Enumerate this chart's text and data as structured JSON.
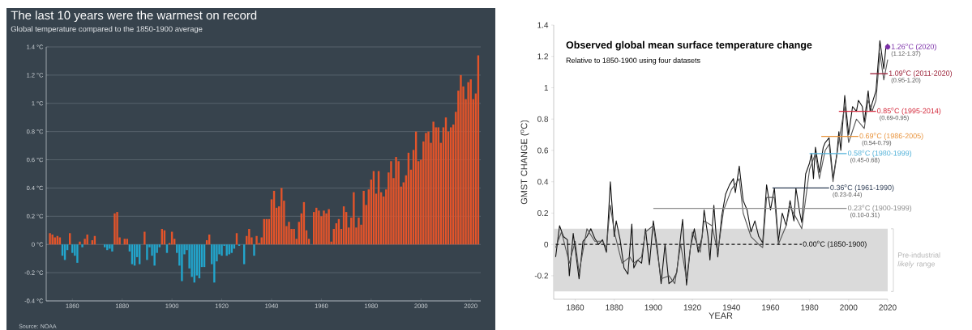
{
  "chart_data": [
    {
      "type": "bar",
      "title": "The last 10 years were the warmest on record",
      "subtitle": "Global temperature compared to the 1850-1900 average",
      "annotations": [
        "Source: NOAA"
      ],
      "x": [
        1851,
        1852,
        1853,
        1854,
        1855,
        1856,
        1857,
        1858,
        1859,
        1860,
        1861,
        1862,
        1863,
        1864,
        1865,
        1866,
        1867,
        1868,
        1869,
        1870,
        1871,
        1872,
        1873,
        1874,
        1875,
        1876,
        1877,
        1878,
        1879,
        1880,
        1881,
        1882,
        1883,
        1884,
        1885,
        1886,
        1887,
        1888,
        1889,
        1890,
        1891,
        1892,
        1893,
        1894,
        1895,
        1896,
        1897,
        1898,
        1899,
        1900,
        1901,
        1902,
        1903,
        1904,
        1905,
        1906,
        1907,
        1908,
        1909,
        1910,
        1911,
        1912,
        1913,
        1914,
        1915,
        1916,
        1917,
        1918,
        1919,
        1920,
        1921,
        1922,
        1923,
        1924,
        1925,
        1926,
        1927,
        1928,
        1929,
        1930,
        1931,
        1932,
        1933,
        1934,
        1935,
        1936,
        1937,
        1938,
        1939,
        1940,
        1941,
        1942,
        1943,
        1944,
        1945,
        1946,
        1947,
        1948,
        1949,
        1950,
        1951,
        1952,
        1953,
        1954,
        1955,
        1956,
        1957,
        1958,
        1959,
        1960,
        1961,
        1962,
        1963,
        1964,
        1965,
        1966,
        1967,
        1968,
        1969,
        1970,
        1971,
        1972,
        1973,
        1974,
        1975,
        1976,
        1977,
        1978,
        1979,
        1980,
        1981,
        1982,
        1983,
        1984,
        1985,
        1986,
        1987,
        1988,
        1989,
        1990,
        1991,
        1992,
        1993,
        1994,
        1995,
        1996,
        1997,
        1998,
        1999,
        2000,
        2001,
        2002,
        2003,
        2004,
        2005,
        2006,
        2007,
        2008,
        2009,
        2010,
        2011,
        2012,
        2013,
        2014,
        2015,
        2016,
        2017,
        2018,
        2019,
        2020,
        2021,
        2022,
        2023
      ],
      "values": [
        0.08,
        0.07,
        0.05,
        0.06,
        0.05,
        -0.08,
        -0.11,
        -0.04,
        0.08,
        -0.06,
        -0.08,
        -0.13,
        0.02,
        -0.02,
        0.04,
        0.07,
        0,
        0.03,
        0.06,
        0,
        0,
        0,
        -0.02,
        -0.04,
        -0.03,
        -0.05,
        0.22,
        0.23,
        0.05,
        0,
        0.04,
        0.04,
        -0.05,
        -0.14,
        -0.15,
        -0.09,
        -0.14,
        0,
        0.09,
        -0.11,
        -0.02,
        -0.08,
        -0.15,
        -0.06,
        -0.02,
        0.11,
        0.1,
        -0.06,
        0.01,
        0.09,
        0.04,
        -0.06,
        -0.15,
        -0.26,
        -0.07,
        -0.04,
        -0.17,
        -0.23,
        -0.27,
        -0.22,
        -0.24,
        -0.16,
        -0.16,
        0.03,
        0.07,
        -0.14,
        -0.27,
        -0.12,
        -0.07,
        -0.08,
        -0.01,
        -0.08,
        -0.07,
        -0.06,
        -0.03,
        0.08,
        -0.01,
        0,
        -0.14,
        0.06,
        0.11,
        0.05,
        -0.08,
        0.06,
        0.01,
        0.05,
        0.18,
        0.18,
        0.18,
        0.32,
        0.38,
        0.26,
        0.27,
        0.4,
        0.31,
        0.13,
        0.16,
        0.11,
        0.11,
        0.04,
        0.16,
        0.22,
        0.3,
        0.1,
        0.04,
        0,
        0.23,
        0.26,
        0.24,
        0.2,
        0.24,
        0.22,
        0.25,
        0.02,
        0.11,
        0.15,
        0.18,
        0.11,
        0.27,
        0.23,
        0.12,
        0.19,
        0.37,
        0.12,
        0.19,
        0.14,
        0.38,
        0.28,
        0.39,
        0.46,
        0.52,
        0.36,
        0.52,
        0.37,
        0.34,
        0.39,
        0.51,
        0.59,
        0.47,
        0.62,
        0.59,
        0.41,
        0.44,
        0.49,
        0.65,
        0.53,
        0.67,
        0.8,
        0.59,
        0.6,
        0.73,
        0.79,
        0.8,
        0.72,
        0.87,
        0.83,
        0.83,
        0.72,
        0.83,
        0.9,
        0.8,
        0.83,
        0.85,
        0.94,
        1.09,
        1.2,
        1.12,
        1.03,
        1.15,
        1.17,
        1.03,
        1.07,
        1.34
      ],
      "colors": [
        "#e4542a",
        "#e4542a",
        "#e4542a",
        "#e4542a",
        "#e4542a",
        "#22a5cc",
        "#22a5cc",
        "#22a5cc",
        "#e4542a",
        "#22a5cc",
        "#22a5cc",
        "#22a5cc",
        "#e4542a",
        "#22a5cc",
        "#e4542a",
        "#e4542a",
        "#e4542a",
        "#e4542a",
        "#e4542a",
        "#e4542a",
        "#e4542a",
        "#e4542a",
        "#22a5cc",
        "#22a5cc",
        "#22a5cc",
        "#22a5cc",
        "#e4542a",
        "#e4542a",
        "#e4542a",
        "#e4542a",
        "#e4542a",
        "#e4542a",
        "#22a5cc",
        "#22a5cc",
        "#22a5cc",
        "#22a5cc",
        "#22a5cc",
        "#e4542a",
        "#e4542a",
        "#22a5cc",
        "#22a5cc",
        "#22a5cc",
        "#22a5cc",
        "#22a5cc",
        "#22a5cc",
        "#e4542a",
        "#e4542a",
        "#22a5cc",
        "#e4542a",
        "#e4542a",
        "#e4542a",
        "#22a5cc",
        "#22a5cc",
        "#22a5cc",
        "#22a5cc",
        "#22a5cc",
        "#22a5cc",
        "#22a5cc",
        "#22a5cc",
        "#22a5cc",
        "#22a5cc",
        "#22a5cc",
        "#22a5cc",
        "#e4542a",
        "#e4542a",
        "#22a5cc",
        "#22a5cc",
        "#22a5cc",
        "#22a5cc",
        "#22a5cc",
        "#22a5cc",
        "#22a5cc",
        "#22a5cc",
        "#22a5cc",
        "#22a5cc",
        "#e4542a",
        "#22a5cc",
        "#e4542a",
        "#22a5cc",
        "#e4542a",
        "#e4542a",
        "#e4542a",
        "#22a5cc",
        "#e4542a",
        "#e4542a",
        "#e4542a",
        "#e4542a",
        "#e4542a",
        "#e4542a",
        "#e4542a",
        "#e4542a",
        "#e4542a",
        "#e4542a",
        "#e4542a",
        "#e4542a",
        "#e4542a",
        "#e4542a",
        "#e4542a",
        "#e4542a",
        "#e4542a",
        "#e4542a",
        "#e4542a",
        "#e4542a",
        "#e4542a",
        "#e4542a",
        "#e4542a",
        "#e4542a",
        "#e4542a",
        "#e4542a",
        "#e4542a",
        "#e4542a",
        "#e4542a",
        "#e4542a",
        "#e4542a",
        "#e4542a",
        "#e4542a",
        "#e4542a",
        "#e4542a",
        "#e4542a",
        "#e4542a",
        "#e4542a",
        "#e4542a",
        "#e4542a",
        "#e4542a",
        "#e4542a",
        "#e4542a",
        "#e4542a",
        "#e4542a",
        "#e4542a",
        "#e4542a",
        "#e4542a",
        "#e4542a",
        "#e4542a",
        "#e4542a",
        "#e4542a",
        "#e4542a",
        "#e4542a",
        "#e4542a",
        "#e4542a",
        "#e4542a",
        "#e4542a",
        "#e4542a",
        "#e4542a",
        "#e4542a",
        "#e4542a",
        "#e4542a",
        "#e4542a",
        "#e4542a",
        "#e4542a",
        "#e4542a",
        "#e4542a",
        "#e4542a",
        "#e4542a",
        "#e4542a",
        "#e4542a",
        "#e4542a",
        "#e4542a",
        "#e4542a",
        "#e4542a",
        "#e4542a",
        "#e4542a",
        "#e4542a",
        "#e4542a",
        "#e4542a",
        "#e4542a",
        "#e4542a",
        "#e4542a",
        "#e4542a",
        "#e4542a",
        "#e4542a",
        "#e4542a",
        "#e4542a",
        "#e4542a"
      ],
      "xlim": [
        1849.5,
        2024
      ],
      "xticks": [
        1860,
        1880,
        1900,
        1920,
        1940,
        1960,
        1980,
        2000,
        2020
      ],
      "ylim": [
        -0.4,
        1.4
      ],
      "yticks": [
        {
          "value": -0.4,
          "label": "-0.4 °C"
        },
        {
          "value": -0.2,
          "label": "-0.2 °C"
        },
        {
          "value": 0,
          "label": "0 °C"
        },
        {
          "value": 0.2,
          "label": "0.2 °C"
        },
        {
          "value": 0.4,
          "label": "0.4 °C"
        },
        {
          "value": 0.6,
          "label": "0.6 °C"
        },
        {
          "value": 0.8,
          "label": "0.8 °C"
        },
        {
          "value": 1,
          "label": "1 °C"
        },
        {
          "value": 1.2,
          "label": "1.2 °C"
        },
        {
          "value": 1.4,
          "label": "1.4 °C"
        }
      ],
      "grid": "y"
    },
    {
      "type": "line",
      "title": "Observed global mean surface temperature change",
      "subtitle": "Relative to 1850-1900 using four datasets",
      "xlabel": "YEAR",
      "ylabel": "GMST CHANGE  ($^{o}$C)",
      "xlim": [
        1849,
        2020
      ],
      "xticks": [
        1860,
        1880,
        1900,
        1920,
        1940,
        1960,
        1980,
        2000,
        2020
      ],
      "ylim": [
        -0.35,
        1.4
      ],
      "yticks": [
        -0.2,
        0,
        0.2,
        0.4,
        0.6,
        0.8,
        1,
        1.2,
        1.4
      ],
      "bands": [
        {
          "axis": "y",
          "from": -0.3,
          "to": 0.1,
          "label": "Pre-industrial *likely* range",
          "color": "#dadada"
        }
      ],
      "series": [
        {
          "color": "#111111",
          "x": [
            1850,
            1852,
            1854,
            1856,
            1857,
            1859,
            1862,
            1864,
            1866,
            1868,
            1870,
            1872,
            1874,
            1876,
            1878,
            1880,
            1881,
            1883,
            1885,
            1887,
            1889,
            1890,
            1892,
            1894,
            1896,
            1898,
            1900,
            1902,
            1904,
            1906,
            1908,
            1910,
            1912,
            1914,
            1915,
            1917,
            1919,
            1921,
            1923,
            1925,
            1926,
            1928,
            1929,
            1931,
            1933,
            1935,
            1937,
            1939,
            1941,
            1942,
            1944,
            1946,
            1948,
            1950,
            1952,
            1954,
            1956,
            1958,
            1960,
            1962,
            1964,
            1966,
            1968,
            1970,
            1972,
            1973,
            1975,
            1976,
            1978,
            1980,
            1981,
            1982,
            1983,
            1985,
            1987,
            1988,
            1990,
            1992,
            1994,
            1995,
            1996,
            1998,
            2000,
            2002,
            2004,
            2005,
            2007,
            2008,
            2010,
            2011,
            2012,
            2014,
            2016,
            2018,
            2019,
            2020
          ],
          "values": [
            -0.08,
            0.12,
            0.05,
            0.03,
            -0.2,
            0.07,
            -0.22,
            0.02,
            0.05,
            0.1,
            0.04,
            0,
            0.03,
            -0.05,
            0.4,
            0.05,
            0.15,
            0.03,
            -0.15,
            -0.19,
            0.13,
            -0.15,
            -0.1,
            -0.12,
            0.1,
            -0.13,
            0.15,
            -0.02,
            -0.25,
            0,
            -0.25,
            -0.23,
            -0.18,
            0.05,
            0.16,
            -0.26,
            -0.02,
            0.1,
            -0.05,
            0.05,
            0.22,
            0.05,
            -0.1,
            0.25,
            -0.08,
            0.18,
            0.32,
            0.38,
            0.42,
            0.33,
            0.5,
            0.28,
            0.22,
            0.08,
            0.15,
            0.05,
            0.01,
            0.38,
            0.22,
            0.36,
            0.02,
            0.2,
            0.12,
            0.28,
            0.15,
            0.36,
            0.2,
            0.14,
            0.45,
            0.52,
            0.58,
            0.42,
            0.62,
            0.46,
            0.62,
            0.65,
            0.68,
            0.42,
            0.58,
            0.72,
            0.6,
            0.95,
            0.7,
            0.88,
            0.85,
            0.92,
            0.88,
            0.78,
            0.98,
            0.85,
            0.9,
            0.98,
            1.3,
            1.12,
            1.25,
            1.28
          ]
        },
        {
          "color": "#555555",
          "x": [
            1850,
            1853,
            1857,
            1860,
            1862,
            1866,
            1870,
            1874,
            1876,
            1878,
            1880,
            1884,
            1888,
            1890,
            1894,
            1896,
            1900,
            1904,
            1908,
            1911,
            1914,
            1917,
            1920,
            1924,
            1926,
            1930,
            1933,
            1936,
            1940,
            1944,
            1946,
            1950,
            1954,
            1956,
            1958,
            1962,
            1964,
            1968,
            1970,
            1974,
            1976,
            1980,
            1983,
            1985,
            1988,
            1990,
            1992,
            1995,
            1998,
            2000,
            2004,
            2008,
            2010,
            2012,
            2014,
            2016,
            2018,
            2020
          ],
          "values": [
            -0.02,
            0.08,
            -0.12,
            0.02,
            -0.18,
            0.1,
            0.02,
            0.02,
            -0.02,
            0.25,
            0.08,
            -0.12,
            -0.08,
            -0.12,
            -0.08,
            0.08,
            0.12,
            -0.22,
            -0.2,
            -0.25,
            0,
            -0.22,
            0.08,
            -0.05,
            0.15,
            0.12,
            -0.05,
            0.22,
            0.35,
            0.42,
            0.2,
            0.05,
            0,
            -0.02,
            0.3,
            0.3,
            0,
            0.12,
            0.24,
            0.15,
            0.1,
            0.48,
            0.58,
            0.42,
            0.6,
            0.64,
            0.4,
            0.66,
            0.88,
            0.65,
            0.8,
            0.74,
            0.92,
            0.85,
            0.92,
            1.22,
            1.05,
            1.18
          ]
        },
        {
          "name": "0.00$^{o}$C (1850-1900)",
          "color": "#111111",
          "line_style": "dashed",
          "x": [
            1850,
            1976
          ],
          "values": [
            0,
            0
          ]
        },
        {
          "name": "0.23$^{o}$C (1900-1999)",
          "color": "#8c8c8c",
          "x": [
            1900,
            1999
          ],
          "values": [
            0.23,
            0.23
          ]
        },
        {
          "name": "0.36$^{o}$C (1961-1990)",
          "color": "#2e3d55",
          "x": [
            1961,
            1990
          ],
          "values": [
            0.36,
            0.36
          ]
        },
        {
          "name": "0.58$^{o}$C (1980-1999)",
          "color": "#4fb0d8",
          "x": [
            1980,
            1999
          ],
          "values": [
            0.58,
            0.58
          ]
        },
        {
          "name": "0.69$^{o}$C (1986-2005)",
          "color": "#e8923a",
          "x": [
            1986,
            2005
          ],
          "values": [
            0.69,
            0.69
          ]
        },
        {
          "name": "0.85$^{o}$C (1995-2014)",
          "color": "#d42a3c",
          "x": [
            1995,
            2014
          ],
          "values": [
            0.85,
            0.85
          ]
        },
        {
          "name": "1.09$^{o}$C (2011-2020)",
          "color": "#9a1e35",
          "x": [
            2011,
            2020
          ],
          "values": [
            1.09,
            1.09
          ]
        },
        {
          "type": "scatter",
          "marker": "circle",
          "name": "1.26$^{o}$C (2020)",
          "color": "#7b2fa8",
          "x": [
            2020
          ],
          "values": [
            1.26
          ]
        }
      ],
      "annotations": [
        {
          "text": "(0.10-0.31)",
          "x": 1999,
          "y": 0.23
        },
        {
          "text": "(0.23-0.44)",
          "x": 1990,
          "y": 0.36
        },
        {
          "text": "(0.45-0.68)",
          "x": 1999,
          "y": 0.58
        },
        {
          "text": "(0.54-0.79)",
          "x": 2005,
          "y": 0.69
        },
        {
          "text": "(0.69-0.95)",
          "x": 2014,
          "y": 0.85
        },
        {
          "text": "(0.95-1.20)",
          "x": 2020,
          "y": 1.09
        },
        {
          "text": "(1.12-1.37)",
          "x": 2020,
          "y": 1.26
        }
      ]
    }
  ]
}
